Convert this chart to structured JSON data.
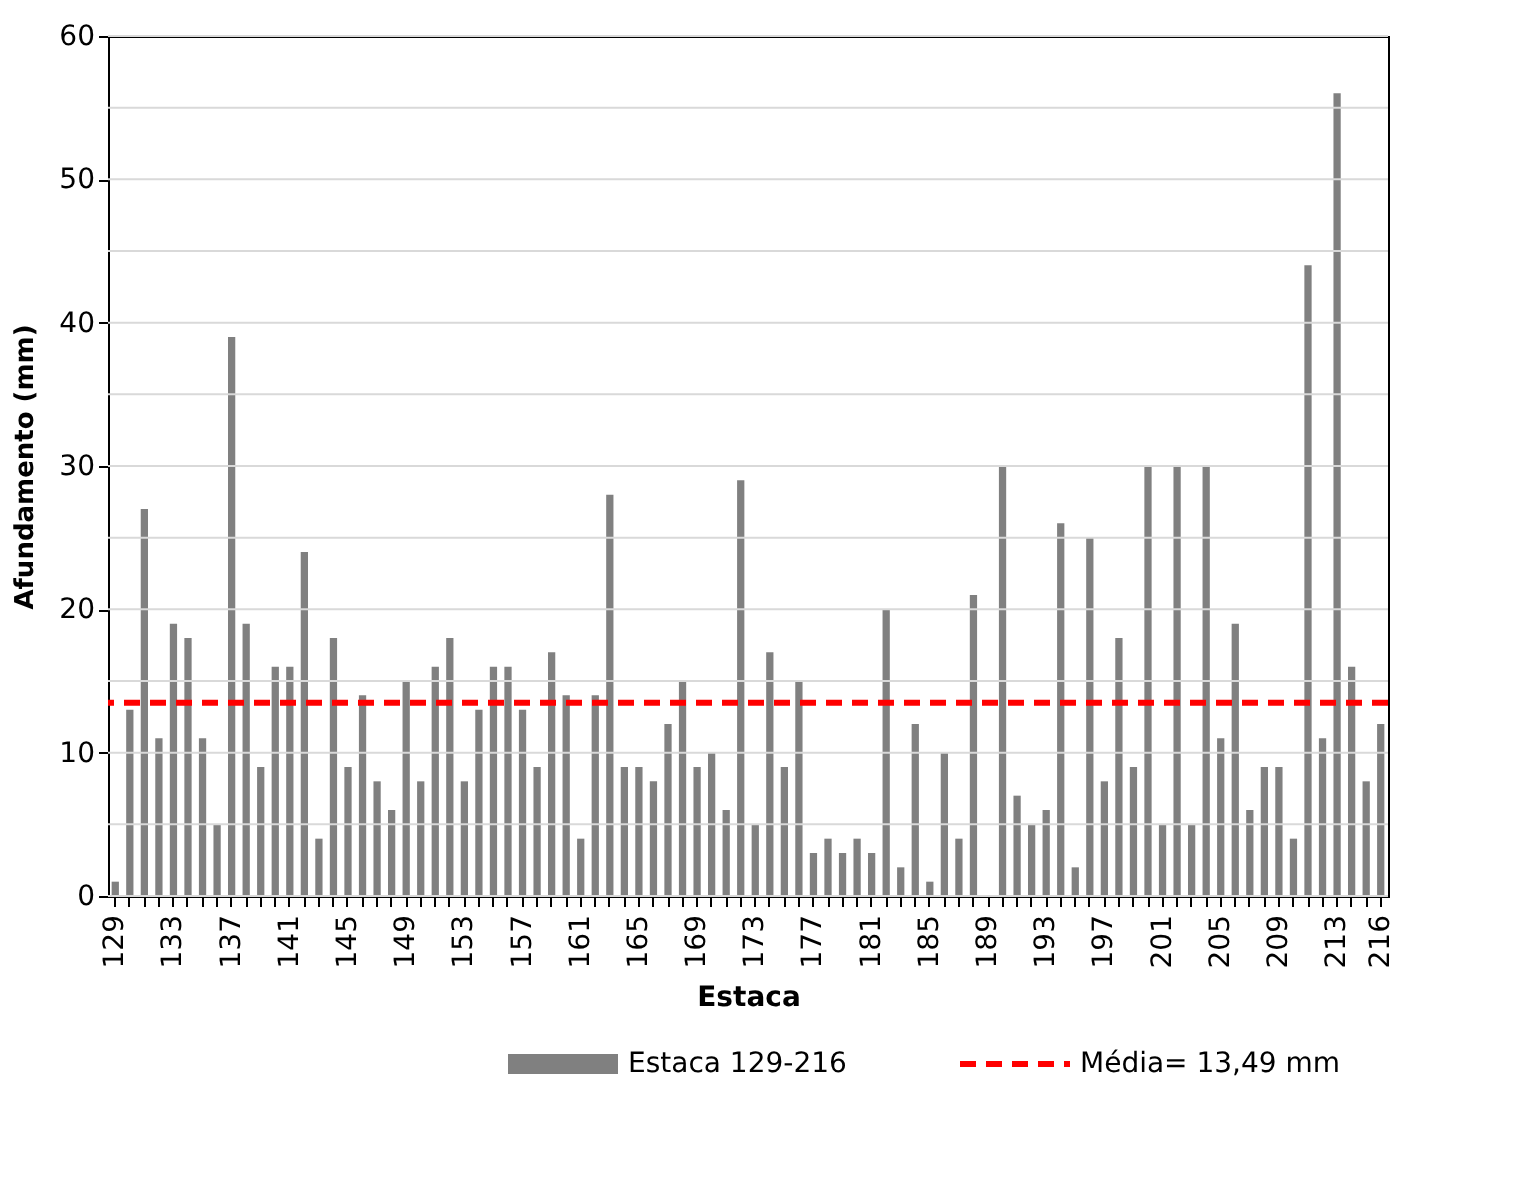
{
  "chart_data": {
    "type": "bar",
    "xlabel": "Estaca",
    "ylabel": "Afundamento (mm)",
    "categories": [
      "129",
      null,
      null,
      null,
      "133",
      null,
      null,
      null,
      "137",
      null,
      null,
      null,
      "141",
      null,
      null,
      null,
      "145",
      null,
      null,
      null,
      "149",
      null,
      null,
      null,
      "153",
      null,
      null,
      null,
      "157",
      null,
      null,
      null,
      "161",
      null,
      null,
      null,
      "165",
      null,
      null,
      null,
      "169",
      null,
      null,
      null,
      "173",
      null,
      null,
      null,
      "177",
      null,
      null,
      null,
      "181",
      null,
      null,
      null,
      "185",
      null,
      null,
      null,
      "189",
      null,
      null,
      null,
      "193",
      null,
      null,
      null,
      "197",
      null,
      null,
      null,
      "201",
      null,
      null,
      null,
      "205",
      null,
      null,
      null,
      "209",
      null,
      null,
      null,
      "213",
      null,
      null,
      "216"
    ],
    "series": [
      {
        "name": "Estaca 129-216",
        "color": "#808080",
        "values": [
          1,
          13,
          27,
          11,
          19,
          18,
          11,
          5,
          39,
          19,
          9,
          16,
          16,
          24,
          4,
          18,
          9,
          14,
          8,
          6,
          15,
          8,
          16,
          18,
          8,
          13,
          16,
          16,
          13,
          9,
          17,
          14,
          4,
          14,
          28,
          9,
          9,
          8,
          12,
          15,
          9,
          10,
          6,
          29,
          5,
          17,
          9,
          15,
          3,
          4,
          3,
          4,
          3,
          20,
          2,
          12,
          1,
          10,
          4,
          21,
          null,
          30,
          7,
          5,
          6,
          26,
          2,
          25,
          8,
          18,
          9,
          30,
          5,
          30,
          5,
          30,
          11,
          19,
          6,
          9,
          9,
          4,
          44,
          11,
          56,
          16,
          8,
          12
        ]
      }
    ],
    "ylim": [
      0,
      60
    ],
    "yticks": [
      0,
      {
        "value": 5,
        "label": null
      },
      10,
      {
        "value": 15,
        "label": null
      },
      20,
      {
        "value": 25,
        "label": null
      },
      30,
      {
        "value": 35,
        "label": null
      },
      40,
      {
        "value": 45,
        "label": null
      },
      50,
      {
        "value": 55,
        "label": null
      },
      60
    ],
    "grid": "y",
    "legend": "bottom",
    "ref_lines": [
      {
        "axis": "y",
        "value": 13.49,
        "label": "Média= 13,49 mm",
        "color": "#ff0000",
        "line_style": "dashed"
      }
    ]
  }
}
